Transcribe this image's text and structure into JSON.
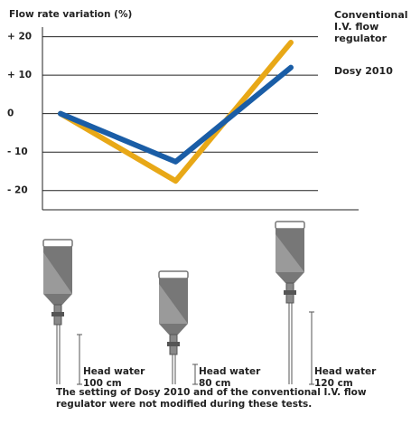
{
  "chart_data": {
    "type": "line",
    "y_label": "Flow rate variation (%)",
    "categories": [
      null,
      null,
      null
    ],
    "series": [
      {
        "name": "Conventional I.V. flow regulator",
        "color": "#e8a817",
        "values": [
          0,
          -17.5,
          18.5
        ]
      },
      {
        "name": "Dosy 2010",
        "color": "#1a5da6",
        "values": [
          0,
          -12.5,
          12
        ]
      }
    ],
    "ylim": [
      -25,
      22.5
    ],
    "yticks": [
      {
        "value": 20,
        "label": "+ 20"
      },
      {
        "value": 10,
        "label": "+ 10"
      },
      0,
      {
        "value": -10,
        "label": "- 10"
      },
      {
        "value": -20,
        "label": "- 20"
      }
    ],
    "grid": true
  },
  "illustration": {
    "bottles": [
      {
        "label": "Head water",
        "height": "100 cm"
      },
      {
        "label": "Head water",
        "height": "80 cm"
      },
      {
        "label": "Head water",
        "height": "120 cm"
      }
    ]
  },
  "footnote": "The setting of Dosy 2010 and of the conventional I.V. flow regulator were not modified during these tests."
}
